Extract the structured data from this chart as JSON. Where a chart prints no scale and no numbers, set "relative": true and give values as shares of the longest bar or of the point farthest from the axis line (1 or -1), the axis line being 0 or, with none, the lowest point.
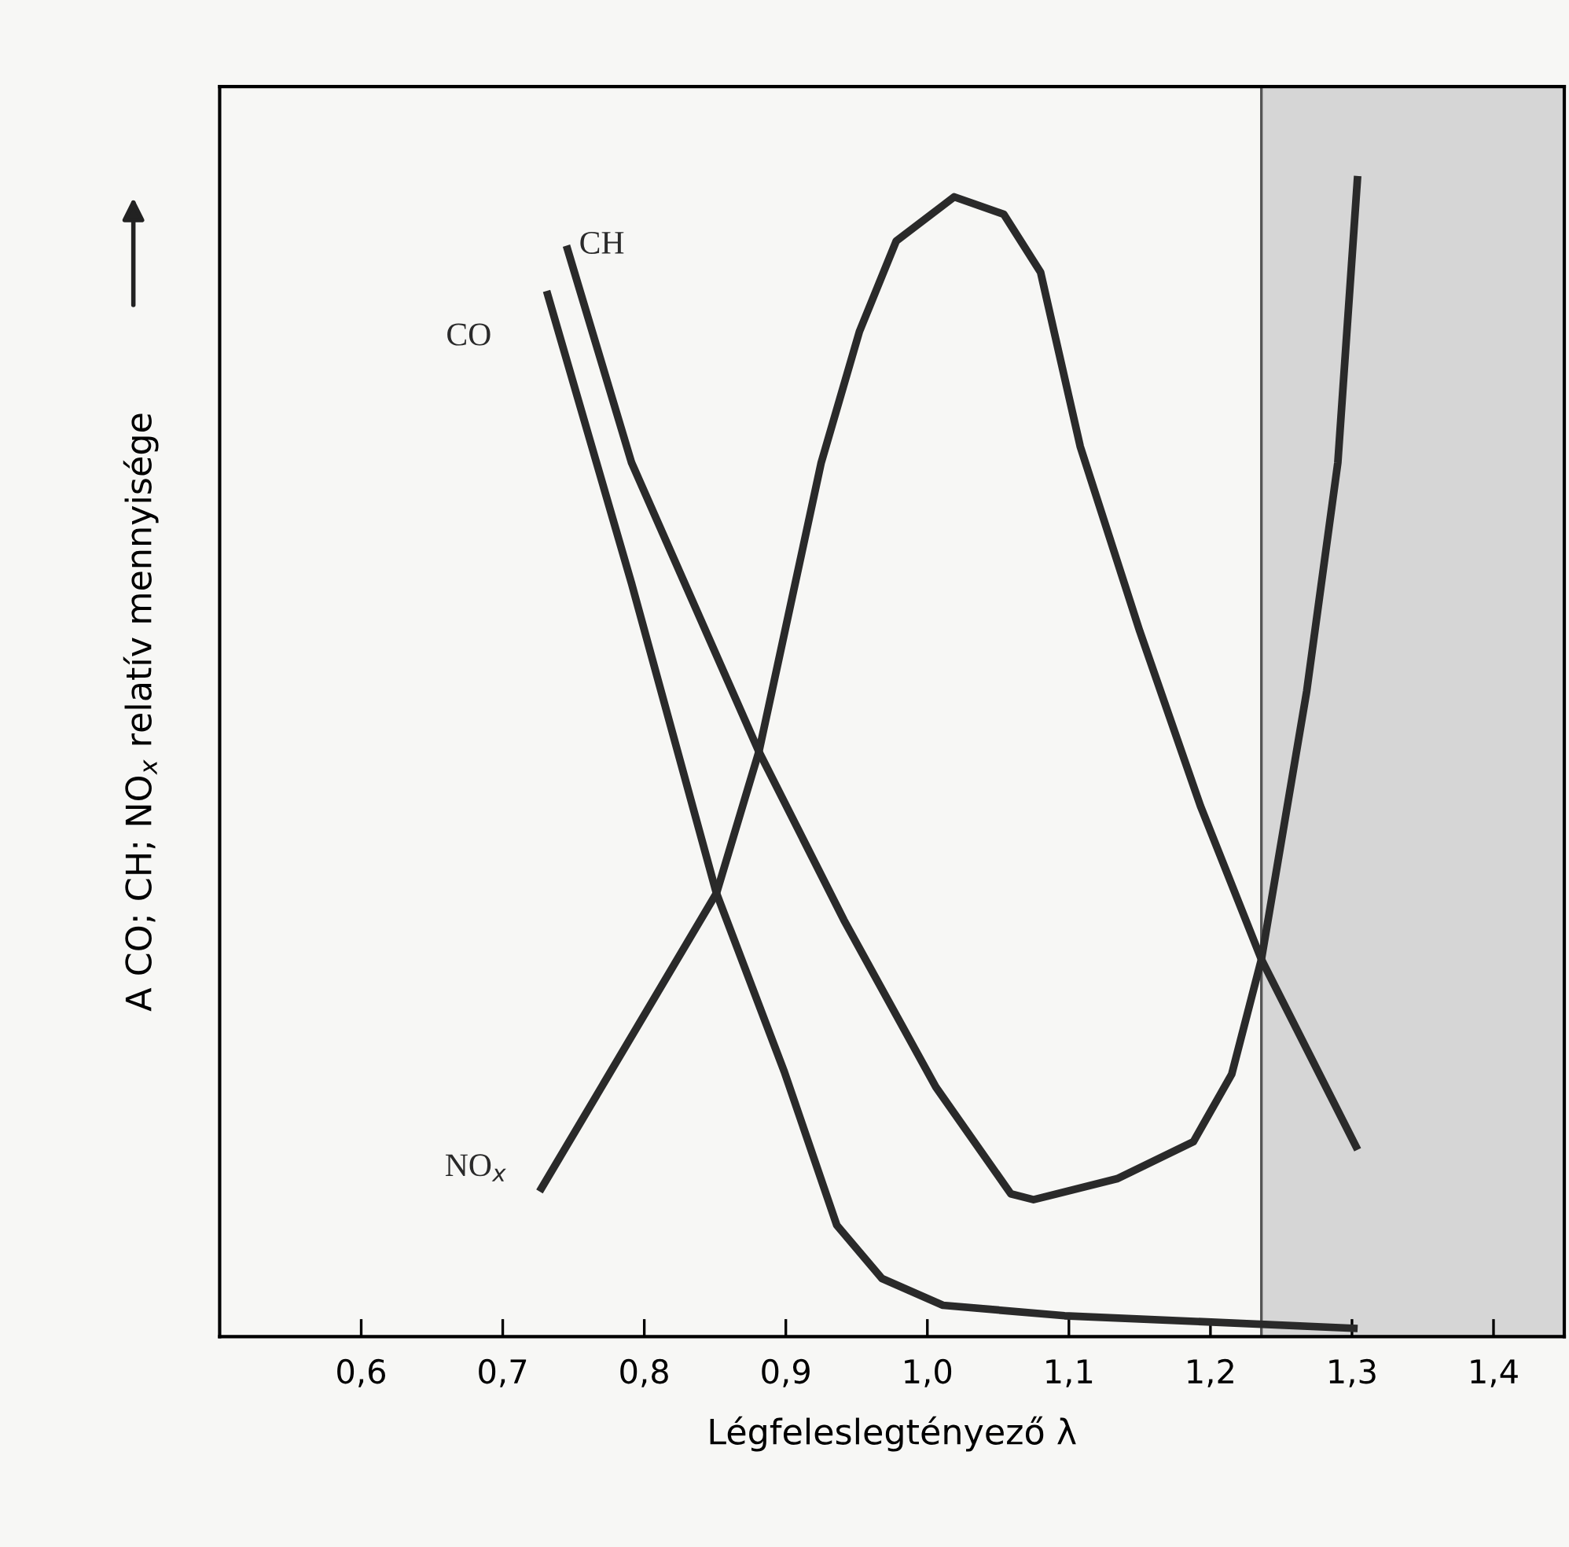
{
  "chart_data": {
    "type": "line",
    "relative": true,
    "xlabel": "Légfeleslegtényező λ",
    "ylabel": "A CO; CH; NO$_{x}$ relatív mennyisége",
    "xlim": [
      0.5,
      1.45
    ],
    "xticks": [
      {
        "value": 0.6,
        "label": "0,6"
      },
      {
        "value": 0.7,
        "label": "0,7"
      },
      {
        "value": 0.8,
        "label": "0,8"
      },
      {
        "value": 0.9,
        "label": "0,9"
      },
      {
        "value": 1.0,
        "label": "1,0"
      },
      {
        "value": 1.1,
        "label": "1,1"
      },
      {
        "value": 1.2,
        "label": "1,2"
      },
      {
        "value": 1.3,
        "label": "1,3"
      },
      {
        "value": 1.4,
        "label": "1,4"
      }
    ],
    "bands": [
      {
        "axis": "x",
        "from": 1.236,
        "to": 1.45,
        "color": "#d6d6d6"
      }
    ],
    "grid": false,
    "legend": false,
    "marker": "none",
    "line_style": "solid",
    "series": [
      {
        "name": "CO",
        "color": "#2a2a2a",
        "x": [
          0.731,
          0.791,
          0.851,
          0.899,
          0.936,
          0.968,
          1.011,
          1.097,
          1.304
        ],
        "values": [
          0.901,
          0.649,
          0.382,
          0.228,
          0.096,
          0.05,
          0.027,
          0.018,
          0.007
        ]
      },
      {
        "name": "CH",
        "color": "#2a2a2a",
        "x": [
          0.745,
          0.791,
          0.881,
          0.941,
          1.006,
          1.059,
          1.075,
          1.134,
          1.188,
          1.215,
          1.236,
          1.268,
          1.29,
          1.304
        ],
        "values": [
          0.94,
          0.753,
          0.504,
          0.359,
          0.215,
          0.123,
          0.118,
          0.136,
          0.168,
          0.226,
          0.325,
          0.556,
          0.753,
          1.0
        ]
      },
      {
        "name": "NO$_{x}$",
        "color": "#2a2a2a",
        "x": [
          0.726,
          0.851,
          0.881,
          0.925,
          0.952,
          0.978,
          1.019,
          1.054,
          1.08,
          1.108,
          1.15,
          1.193,
          1.236,
          1.304
        ],
        "values": [
          0.125,
          0.382,
          0.504,
          0.753,
          0.866,
          0.944,
          0.982,
          0.967,
          0.917,
          0.767,
          0.608,
          0.457,
          0.325,
          0.161
        ]
      }
    ]
  }
}
